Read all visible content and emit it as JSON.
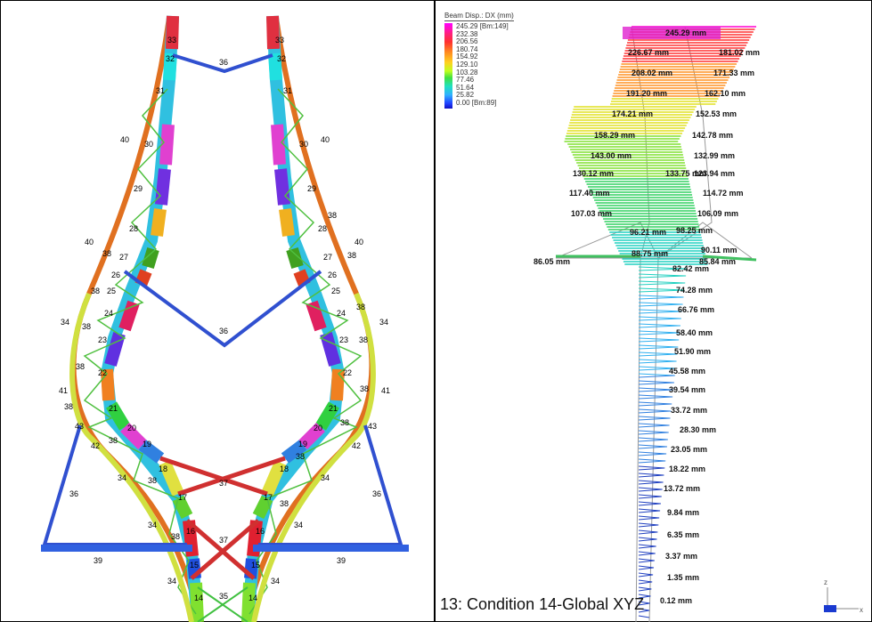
{
  "left_panel": {
    "element_labels": [
      "33",
      "32",
      "36",
      "31",
      "40",
      "30",
      "29",
      "28",
      "27",
      "26",
      "25",
      "24",
      "23",
      "22",
      "21",
      "20",
      "19",
      "18",
      "17",
      "16",
      "15",
      "14",
      "35",
      "37",
      "38",
      "34",
      "41",
      "42",
      "43",
      "39"
    ]
  },
  "right_panel": {
    "legend": {
      "title": "Beam Disp.: DX  (mm)",
      "max": "245.29 [Bm:149]",
      "values": [
        "232.38",
        "206.56",
        "180.74",
        "154.92",
        "129.10",
        "103.28",
        "77.46",
        "51.64",
        "25.82"
      ],
      "min": "0.00 [Bm:89]"
    },
    "displacement_labels": [
      "245.29 mm",
      "226.67 mm",
      "181.02 mm",
      "208.02 mm",
      "171.33 mm",
      "191.20 mm",
      "162.10 mm",
      "174.21 mm",
      "152.53 mm",
      "158.29 mm",
      "142.78 mm",
      "143.00 mm",
      "132.99 mm",
      "130.12 mm",
      "133.75 mm",
      "123.94 mm",
      "117.40 mm",
      "114.72 mm",
      "107.03 mm",
      "106.09 mm",
      "96.21 mm",
      "98.25 mm",
      "88.75 mm",
      "90.11 mm",
      "86.05 mm",
      "85.84 mm",
      "82.42 mm",
      "74.28 mm",
      "66.76 mm",
      "58.40 mm",
      "51.90 mm",
      "45.58 mm",
      "39.54 mm",
      "33.72 mm",
      "28.30 mm",
      "23.05 mm",
      "18.22 mm",
      "13.72 mm",
      "9.84 mm",
      "6.35 mm",
      "3.37 mm",
      "1.35 mm",
      "0.12 mm"
    ],
    "caption": "13: Condition 14-Global XYZ",
    "axis_z": "z",
    "axis_x": "x"
  }
}
